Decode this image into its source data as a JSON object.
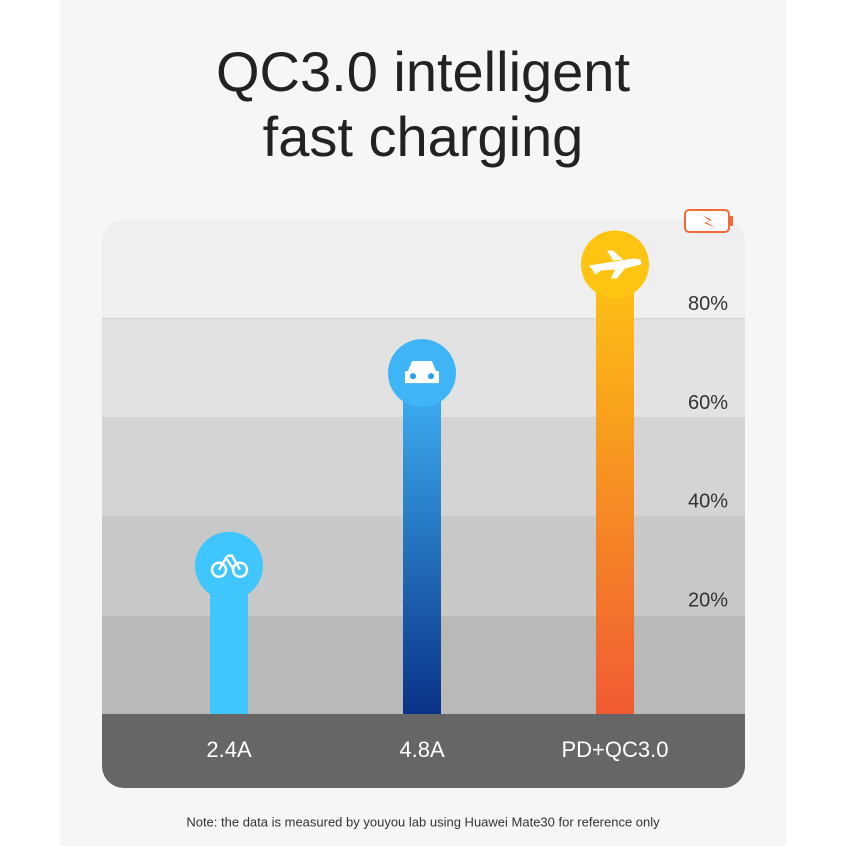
{
  "chart_data": {
    "type": "bar",
    "title": [
      "QC3.0 intelligent",
      "fast charging"
    ],
    "categories": [
      "2.4A",
      "4.8A",
      "PD+QC3.0"
    ],
    "values": [
      30,
      69,
      91
    ],
    "colors": [
      [
        "#3ec6fd",
        "#3ec6fd"
      ],
      [
        "#3fb4f7",
        "#0a3287"
      ],
      [
        "#fdc412",
        "#f05a33"
      ]
    ],
    "ylim": [
      0,
      100
    ],
    "yticks": [
      {
        "value": 20,
        "label": "20%"
      },
      {
        "value": 40,
        "label": "40%"
      },
      {
        "value": 60,
        "label": "60%"
      },
      {
        "value": 80,
        "label": "80%"
      }
    ],
    "grid": true,
    "note": "Note: the data is measured by youyou lab using Huawei Mate30 for reference only"
  }
}
